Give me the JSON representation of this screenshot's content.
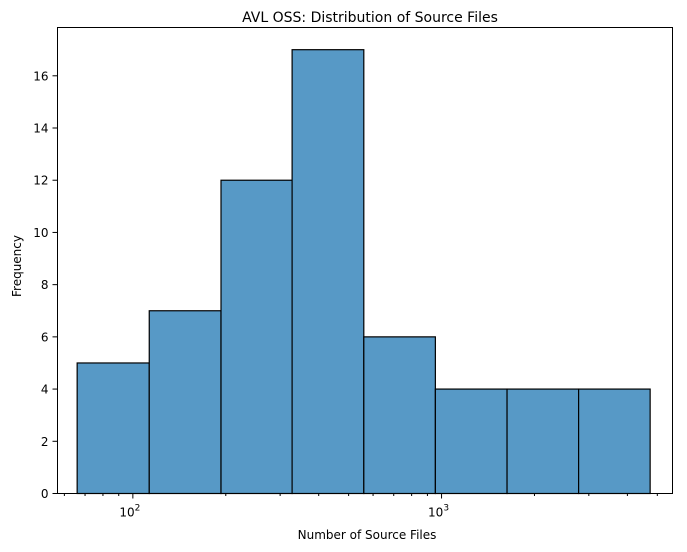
{
  "chart_data": {
    "type": "bar",
    "title": "AVL OSS: Distribution of Source Files",
    "xlabel": "Number of Source Files",
    "ylabel": "Frequency",
    "x_scale": "log",
    "xlim": [
      57,
      5600
    ],
    "ylim": [
      0,
      17.85
    ],
    "bin_edges": [
      66,
      113,
      193,
      328,
      560,
      955,
      1630,
      2780,
      4740
    ],
    "values": [
      5,
      7,
      12,
      17,
      6,
      4,
      4,
      4
    ],
    "bar_color": "#5799c6",
    "yticks": [
      0,
      2,
      4,
      6,
      8,
      10,
      12,
      14,
      16
    ],
    "xticks": [
      {
        "value": 100,
        "base": "10",
        "exp": "2"
      },
      {
        "value": 1000,
        "base": "10",
        "exp": "3"
      }
    ],
    "minor_xticks": [
      60,
      70,
      80,
      90,
      200,
      300,
      400,
      500,
      600,
      700,
      800,
      900,
      2000,
      3000,
      4000,
      5000
    ],
    "grid": false,
    "legend": "none"
  }
}
